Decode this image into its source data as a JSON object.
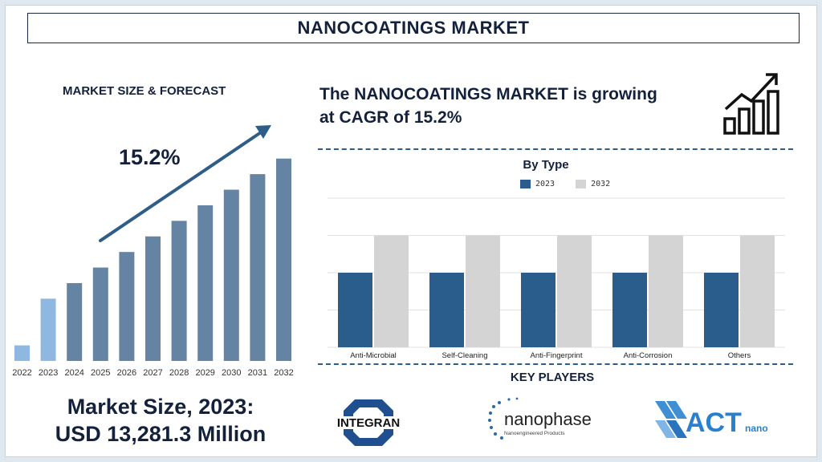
{
  "header": {
    "title": "NANOCOATINGS MARKET"
  },
  "forecast": {
    "title": "MARKET SIZE & FORECAST",
    "cagr_label": "15.2%",
    "market_size_line1": "Market Size, 2023:",
    "market_size_line2": "USD 13,281.3 Million"
  },
  "cagr_statement": {
    "line1": "The NANOCOATINGS MARKET is growing",
    "line2": "at CAGR of 15.2%"
  },
  "type_chart": {
    "title": "By Type"
  },
  "key_players": {
    "title": "KEY PLAYERS",
    "players": [
      {
        "name": "INTEGRAN",
        "icon": "integran-logo"
      },
      {
        "name": "nanophase",
        "tagline": "Nanoengineered Products",
        "icon": "nanophase-logo"
      },
      {
        "name": "ACT",
        "suffix": "nano",
        "icon": "actnano-logo"
      }
    ]
  },
  "colors": {
    "primary_bar": "#6584a3",
    "highlight_bar": "#8fb8e0",
    "series_2023": "#2b5d8c",
    "series_2032": "#d4d4d4",
    "navy_text": "#14213d",
    "arrow": "#2e5d8a"
  },
  "chart_data": [
    {
      "type": "bar",
      "title": "MARKET SIZE & FORECAST",
      "categories": [
        "2022",
        "2023",
        "2024",
        "2025",
        "2026",
        "2027",
        "2028",
        "2029",
        "2030",
        "2031",
        "2032"
      ],
      "values": [
        1,
        4,
        5,
        6,
        7,
        8,
        9,
        10,
        11,
        12,
        13
      ],
      "highlight": [
        "2022",
        "2023"
      ],
      "ylim": [
        0,
        13.5
      ],
      "annotation": "15.2%",
      "grid": false
    },
    {
      "type": "bar",
      "title": "By Type",
      "categories": [
        "Anti-Microbial",
        "Self-Cleaning",
        "Anti-Fingerprint",
        "Anti-Corrosion",
        "Others"
      ],
      "series": [
        {
          "name": "2023",
          "values": [
            2,
            2,
            2,
            2,
            2
          ]
        },
        {
          "name": "2032",
          "values": [
            3,
            3,
            3,
            3,
            3
          ]
        }
      ],
      "ylim": [
        0,
        4
      ],
      "grid": true,
      "legend": "top-center"
    }
  ]
}
